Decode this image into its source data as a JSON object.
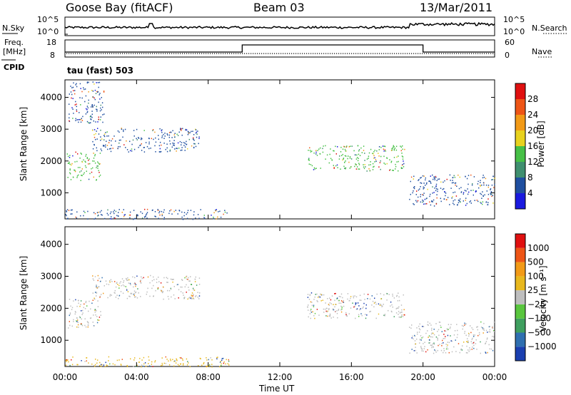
{
  "header": {
    "station": "Goose Bay (fitACF)",
    "beam": "Beam 03",
    "date": "13/Mar/2011"
  },
  "summary_panels": {
    "nsky_label": "N.Sky",
    "nsky_ticks": [
      "10^5",
      "10^0"
    ],
    "nsearch_label": "N.Search",
    "nsearch_ticks": [
      "10^5",
      "10^0"
    ],
    "freq_label": "Freq.",
    "freq_unit": "[MHz]",
    "freq_ticks": [
      "18",
      "8"
    ],
    "nave_label": "Nave",
    "nave_ticks": [
      "60",
      "0"
    ],
    "cpid_label": "CPID",
    "cpid_value": "tau (fast) 503"
  },
  "chart_data": [
    {
      "type": "heatmap",
      "name": "power",
      "ylabel": "Slant Range [km]",
      "xlabel": "Time UT",
      "x_ticks": [
        "00:00",
        "04:00",
        "08:00",
        "12:00",
        "16:00",
        "20:00",
        "00:00"
      ],
      "y_ticks": [
        1000,
        2000,
        3000,
        4000
      ],
      "ylim": [
        180,
        4550
      ],
      "colorbar_label": "Power [dB]",
      "colorbar_ticks": [
        "4",
        "8",
        "12",
        "16",
        "20",
        "24",
        "28"
      ],
      "colorbar_colors": [
        "#1a1adf",
        "#1f4fa0",
        "#3f8f6f",
        "#46c046",
        "#e8d21e",
        "#f29a17",
        "#ee5516",
        "#e01010"
      ],
      "regions": [
        {
          "t0": 0.0,
          "t1": 9.2,
          "r0": 180,
          "r1": 500,
          "dominant_color": "#1f4fa0"
        },
        {
          "t0": 0.1,
          "t1": 2.0,
          "r0": 1400,
          "r1": 2300,
          "dominant_color": "#46c046"
        },
        {
          "t0": 1.5,
          "t1": 7.5,
          "r0": 2300,
          "r1": 3050,
          "dominant_color": "#1f4fa0"
        },
        {
          "t0": 0.2,
          "t1": 2.2,
          "r0": 3200,
          "r1": 4500,
          "dominant_color": "#1f4fa0"
        },
        {
          "t0": 13.5,
          "t1": 19.0,
          "r0": 1700,
          "r1": 2500,
          "dominant_color": "#46c046"
        },
        {
          "t0": 19.2,
          "t1": 24.0,
          "r0": 600,
          "r1": 1600,
          "dominant_color": "#1f4fa0"
        }
      ]
    },
    {
      "type": "heatmap",
      "name": "velocity",
      "ylabel": "Slant Range [km]",
      "xlabel": "Time UT",
      "x_ticks": [
        "00:00",
        "04:00",
        "08:00",
        "12:00",
        "16:00",
        "20:00",
        "00:00"
      ],
      "y_ticks": [
        1000,
        2000,
        3000,
        4000
      ],
      "ylim": [
        180,
        4550
      ],
      "colorbar_label": "Velocity [m s⁻¹]",
      "colorbar_ticks": [
        "1000",
        "500",
        "100",
        "25",
        "−25",
        "−100",
        "−500",
        "−1000"
      ],
      "colorbar_colors": [
        "#1a3fb0",
        "#2f6fb0",
        "#3f9f5f",
        "#59c63e",
        "#bebebe",
        "#e8b81e",
        "#f29a17",
        "#ee5516",
        "#e01010"
      ],
      "regions": [
        {
          "t0": 0.0,
          "t1": 9.2,
          "r0": 180,
          "r1": 500,
          "dominant_color": "#e8b81e"
        },
        {
          "t0": 0.1,
          "t1": 2.0,
          "r0": 1400,
          "r1": 2300,
          "dominant_color": "#bebebe"
        },
        {
          "t0": 1.5,
          "t1": 7.5,
          "r0": 2300,
          "r1": 3050,
          "dominant_color": "#bebebe"
        },
        {
          "t0": 13.5,
          "t1": 19.0,
          "r0": 1700,
          "r1": 2500,
          "dominant_color": "#bebebe"
        },
        {
          "t0": 16.2,
          "t1": 17.0,
          "r0": 1950,
          "r1": 2200,
          "dominant_color": "#1a3fb0"
        },
        {
          "t0": 19.2,
          "t1": 24.0,
          "r0": 600,
          "r1": 1600,
          "dominant_color": "#bebebe"
        }
      ]
    }
  ]
}
